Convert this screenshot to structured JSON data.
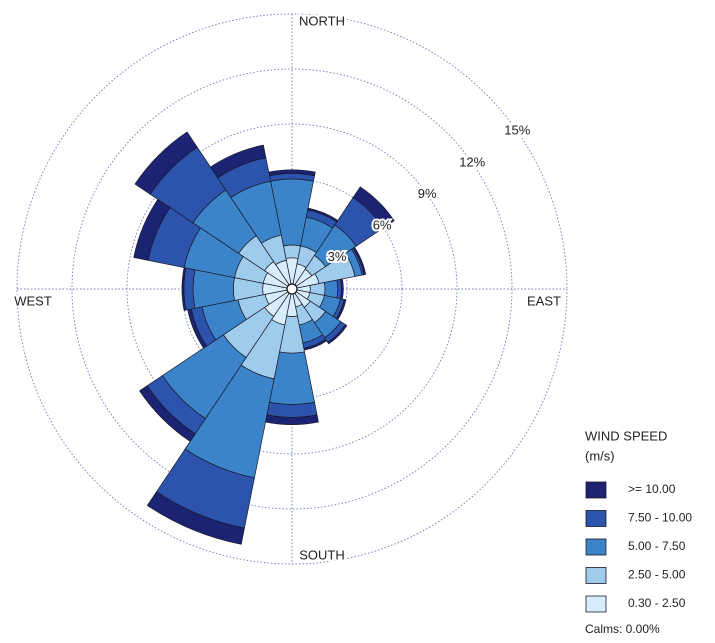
{
  "chart_data": {
    "type": "windrose",
    "categories": [
      "NORTH",
      null,
      null,
      null,
      "EAST",
      null,
      null,
      null,
      "SOUTH",
      null,
      null,
      null,
      "WEST",
      null,
      null,
      null
    ],
    "series": [
      {
        "name": ">= 10.00",
        "color": "#1b2372",
        "values": [
          0.2,
          0.1,
          0.7,
          0.1,
          0.1,
          0.1,
          0.1,
          0.1,
          0.4,
          0.9,
          0.5,
          0.2,
          0.1,
          0.8,
          1.0,
          0.7
        ]
      },
      {
        "name": "7.50 - 10.00",
        "color": "#2d54ad",
        "values": [
          0.3,
          0.4,
          1.8,
          0.1,
          0.2,
          0.2,
          0.3,
          0.3,
          0.7,
          2.8,
          1.0,
          0.6,
          0.5,
          2.0,
          2.8,
          1.3
        ]
      },
      {
        "name": "5.00 - 7.50",
        "color": "#3c84c9",
        "values": [
          3.6,
          1.6,
          2.0,
          0.4,
          0.7,
          0.9,
          1.0,
          1.0,
          2.8,
          5.5,
          4.0,
          2.0,
          2.2,
          2.8,
          3.0,
          3.0
        ]
      },
      {
        "name": "2.50 - 5.00",
        "color": "#9fcbec",
        "values": [
          0.7,
          1.0,
          0.9,
          2.0,
          0.8,
          0.8,
          1.0,
          1.0,
          2.0,
          3.0,
          2.7,
          1.5,
          1.6,
          1.6,
          1.7,
          1.4
        ]
      },
      {
        "name": "0.30 - 2.50",
        "color": "#d8edfa",
        "values": [
          1.7,
          1.4,
          1.3,
          1.5,
          1.0,
          1.0,
          1.2,
          1.0,
          1.5,
          2.0,
          1.8,
          1.5,
          1.6,
          1.6,
          1.8,
          1.6
        ]
      }
    ],
    "rlim": [
      0,
      15
    ],
    "rticks": [
      {
        "value": 3,
        "label": "3%"
      },
      {
        "value": 6,
        "label": "6%"
      },
      {
        "value": 9,
        "label": "9%"
      },
      {
        "value": 12,
        "label": "12%"
      },
      {
        "value": 15,
        "label": "15%"
      }
    ],
    "legend_title": "WIND SPEED",
    "legend_units": "(m/s)",
    "calms_label": "Calms: 0.00%"
  }
}
